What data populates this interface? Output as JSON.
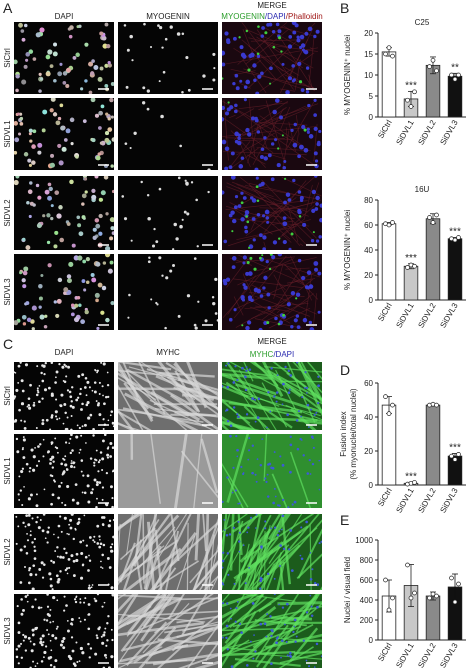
{
  "panels": {
    "A": {
      "letter": "A",
      "columns": [
        "DAPI",
        "MYOGENIN",
        "MERGE"
      ],
      "merge_legend": [
        "MYOGENIN",
        "/DAPI",
        "/Phalloidin"
      ],
      "rows": [
        "SiCtrl",
        "SiDVL1",
        "SiDVL2",
        "SiDVL3"
      ]
    },
    "B": {
      "letter": "B"
    },
    "C": {
      "letter": "C",
      "columns": [
        "DAPI",
        "MYHC",
        "MERGE"
      ],
      "merge_legend": [
        "MYHC",
        "/DAPI"
      ],
      "rows": [
        "SiCtrl",
        "SiDVL1",
        "SiDVL2",
        "SiDVL3"
      ]
    },
    "D": {
      "letter": "D"
    },
    "E": {
      "letter": "E"
    }
  },
  "chart_data": [
    {
      "type": "bar",
      "title": "C25",
      "ylabel": [
        "% MYOGENIN⁺ nuclei"
      ],
      "categories": [
        "SiCtrl",
        "SiDVL1",
        "SiDVL2",
        "SiDVL3"
      ],
      "colors": [
        "#ffffff",
        "#c8c8c8",
        "#8a8a8a",
        "#111111"
      ],
      "values": [
        15.5,
        4.3,
        12.3,
        9.7
      ],
      "errors": [
        1,
        1.8,
        2,
        0.7
      ],
      "points": [
        [
          15,
          16.5,
          14.5
        ],
        [
          4,
          2.5,
          6
        ],
        [
          12,
          13.5,
          11
        ],
        [
          10,
          9,
          10
        ]
      ],
      "significance": [
        null,
        "***",
        null,
        "**"
      ],
      "ylim": [
        0,
        20
      ],
      "yticks": [
        0,
        5,
        10,
        15,
        20
      ]
    },
    {
      "type": "bar",
      "title": "16U",
      "ylabel": [
        "% MYOGENIN⁺ nuclei"
      ],
      "categories": [
        "SiCtrl",
        "SiDVL1",
        "SiDVL2",
        "SiDVL3"
      ],
      "colors": [
        "#ffffff",
        "#c8c8c8",
        "#8a8a8a",
        "#111111"
      ],
      "values": [
        61,
        27,
        65,
        49
      ],
      "errors": [
        1,
        2,
        4,
        1
      ],
      "points": [
        [
          61,
          60,
          62
        ],
        [
          26,
          28,
          27
        ],
        [
          66,
          62,
          68
        ],
        [
          49,
          48,
          50
        ]
      ],
      "significance": [
        null,
        "***",
        null,
        "***"
      ],
      "ylim": [
        0,
        80
      ],
      "yticks": [
        0,
        20,
        40,
        60,
        80
      ]
    },
    {
      "type": "bar",
      "ylabel": [
        "Fusion index",
        "(% myonuclei/total nuclei)"
      ],
      "categories": [
        "SiCtrl",
        "SiDVL1",
        "SiDVL2",
        "SiDVL3"
      ],
      "colors": [
        "#ffffff",
        "#c8c8c8",
        "#8a8a8a",
        "#111111"
      ],
      "values": [
        47,
        1,
        47,
        17
      ],
      "errors": [
        5,
        0.5,
        0.5,
        1.5
      ],
      "points": [
        [
          52,
          42,
          47
        ],
        [
          0.5,
          1,
          1.5
        ],
        [
          47,
          47.5,
          47
        ],
        [
          17,
          15,
          18
        ]
      ],
      "significance": [
        null,
        "***",
        null,
        "***"
      ],
      "ylim": [
        0,
        60
      ],
      "yticks": [
        0,
        20,
        40,
        60
      ]
    },
    {
      "type": "bar",
      "ylabel": [
        "Nuclei / visual field"
      ],
      "categories": [
        "SiCtrl",
        "SiDVL1",
        "SiDVL2",
        "SiDVL3"
      ],
      "colors": [
        "#ffffff",
        "#c8c8c8",
        "#8a8a8a",
        "#111111"
      ],
      "values": [
        440,
        545,
        440,
        530
      ],
      "errors": [
        160,
        210,
        40,
        130
      ],
      "points": [
        [
          600,
          300,
          420
        ],
        [
          750,
          420,
          470
        ],
        [
          420,
          460,
          440
        ],
        [
          620,
          380,
          560
        ]
      ],
      "ylim": [
        0,
        1000
      ],
      "yticks": [
        0,
        200,
        400,
        600,
        800,
        1000
      ]
    }
  ]
}
